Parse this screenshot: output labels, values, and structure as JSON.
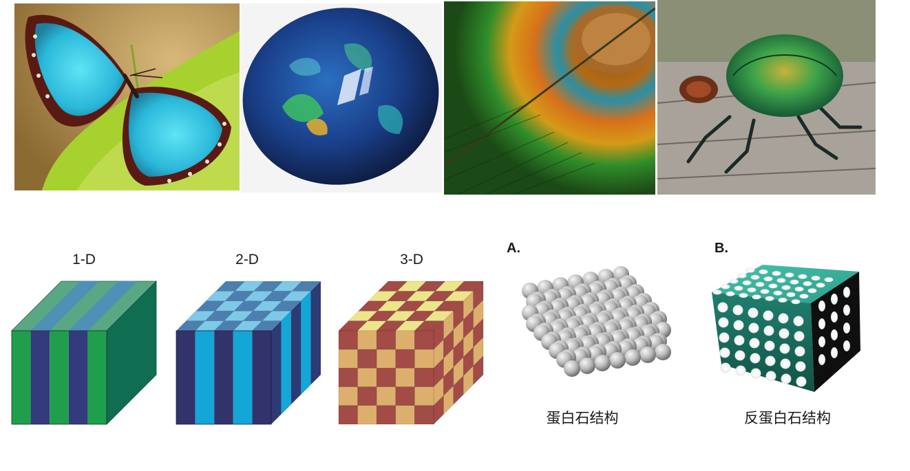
{
  "photos": [
    {
      "subject": "blue-morpho-butterfly"
    },
    {
      "subject": "opal-gemstone"
    },
    {
      "subject": "peacock-feather"
    },
    {
      "subject": "iridescent-beetle"
    }
  ],
  "crystals": {
    "one_d": {
      "label": "1-D"
    },
    "two_d": {
      "label": "2-D"
    },
    "three_d": {
      "label": "3-D"
    }
  },
  "opal_panels": {
    "a": {
      "tag": "A.",
      "caption": "蛋白石结构"
    },
    "b": {
      "tag": "B.",
      "caption": "反蛋白石结构"
    }
  },
  "colors": {
    "green": "#1f9e4c",
    "navy": "#343b7c",
    "dark_green": "#0f6d52",
    "light_blue": "#14a6d6",
    "dark_purple": "#33336b",
    "red_brown": "#a24b47",
    "tan": "#dcb06c",
    "yellow": "#ece58a",
    "sphere_gray": "#bdbdbd",
    "teal": "#2c9e8a"
  }
}
